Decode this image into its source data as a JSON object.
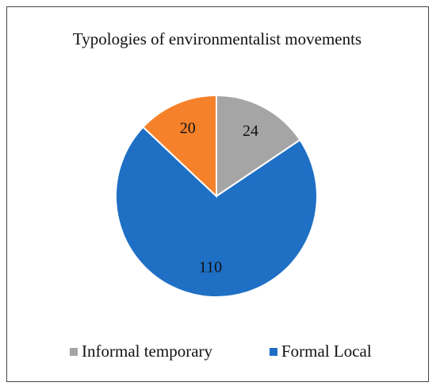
{
  "chart_data": {
    "type": "pie",
    "title": "Typologies of environmentalist movements",
    "categories": [
      "Informal temporary",
      "Formal Local",
      null
    ],
    "values": [
      24,
      110,
      20
    ],
    "colors": [
      "#a5a5a5",
      "#1f6fc5",
      "#f5822a"
    ],
    "legend": "bottom"
  }
}
